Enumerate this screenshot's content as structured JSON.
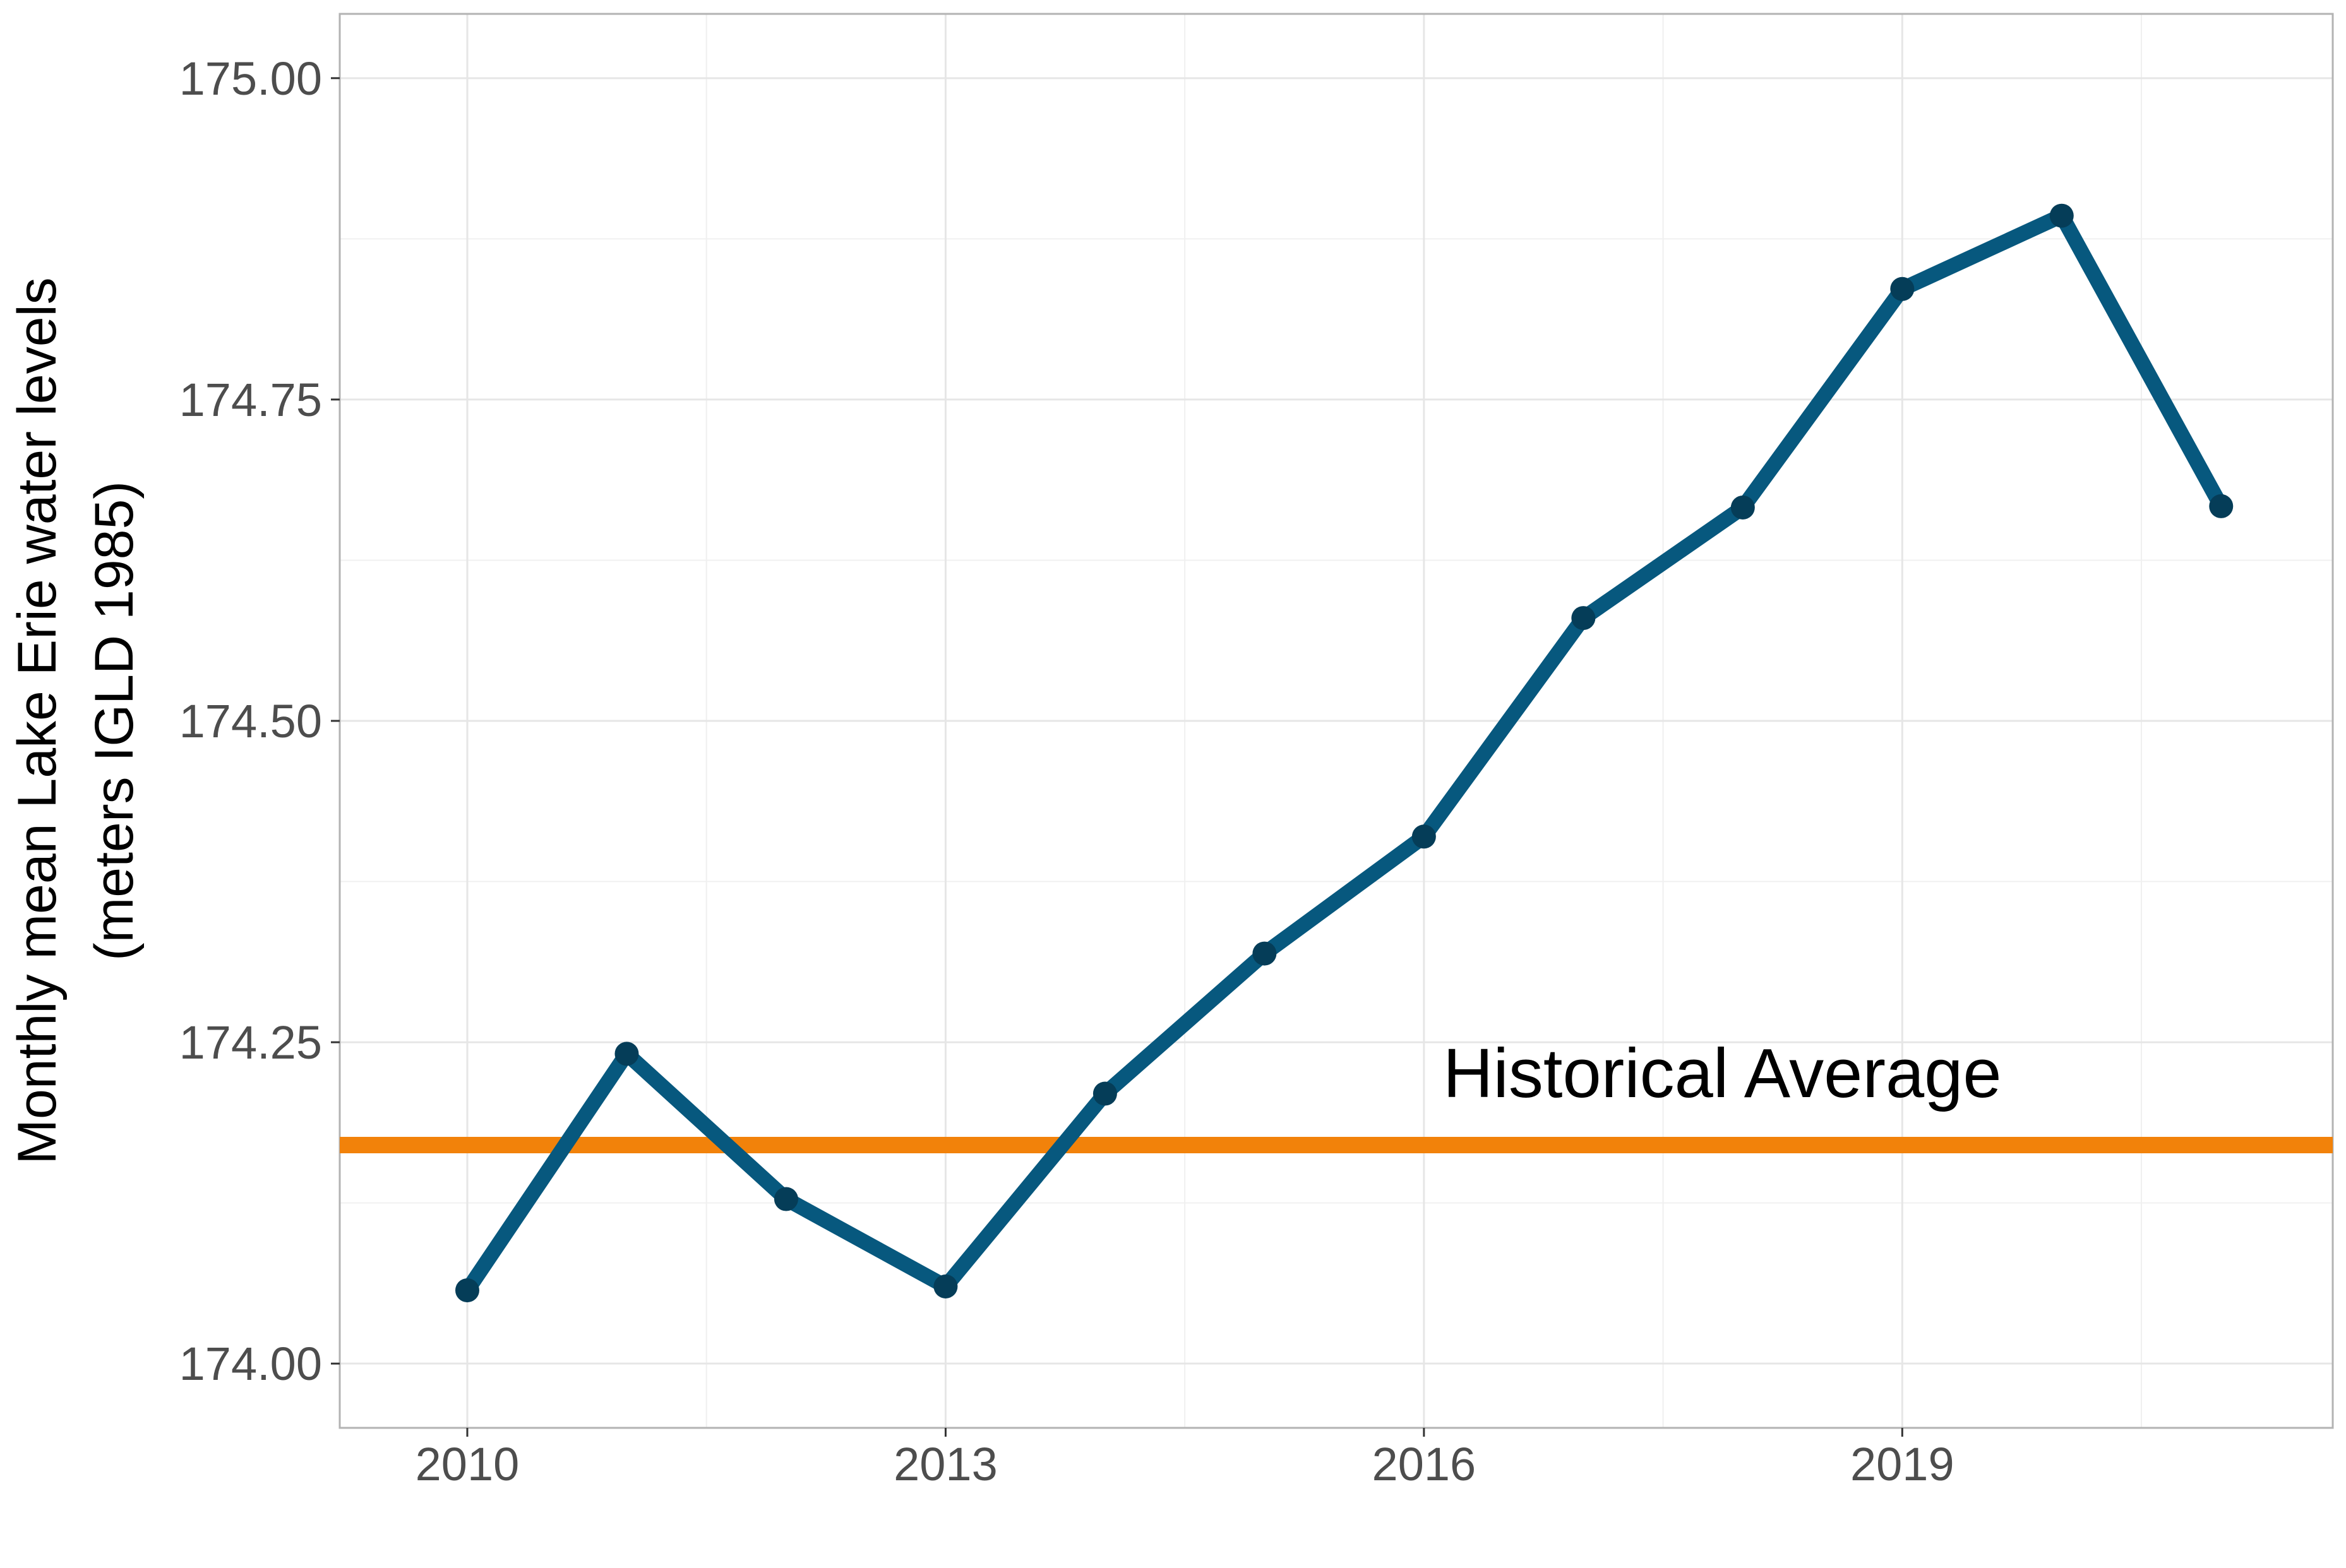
{
  "chart_data": {
    "type": "line",
    "title": "",
    "xlabel": "",
    "ylabel": [
      "Monthly mean Lake Erie water levels",
      "(meters IGLD 1985)"
    ],
    "x": [
      2010,
      2011,
      2012,
      2013,
      2014,
      2015,
      2016,
      2017,
      2018,
      2019,
      2020,
      2021
    ],
    "series": [
      {
        "values": [
          174.057,
          174.241,
          174.128,
          174.06,
          174.21,
          174.319,
          174.41,
          174.58,
          174.666,
          174.836,
          174.893,
          174.667
        ],
        "color": "#07587e",
        "point_color": "#053d58"
      }
    ],
    "reference_line": {
      "label": "Historical Average",
      "value": 174.17,
      "color": "#f2820a"
    },
    "xlim": [
      2009.2,
      2021.7
    ],
    "ylim": [
      173.95,
      175.05
    ],
    "x_ticks": [
      2010,
      2013,
      2016,
      2019
    ],
    "x_tick_labels": [
      "2010",
      "2013",
      "2016",
      "2019"
    ],
    "y_ticks": [
      174.0,
      174.25,
      174.5,
      174.75,
      175.0
    ],
    "y_tick_labels": [
      "174.00",
      "174.25",
      "174.50",
      "174.75",
      "175.00"
    ],
    "grid": true,
    "legend": "none"
  }
}
